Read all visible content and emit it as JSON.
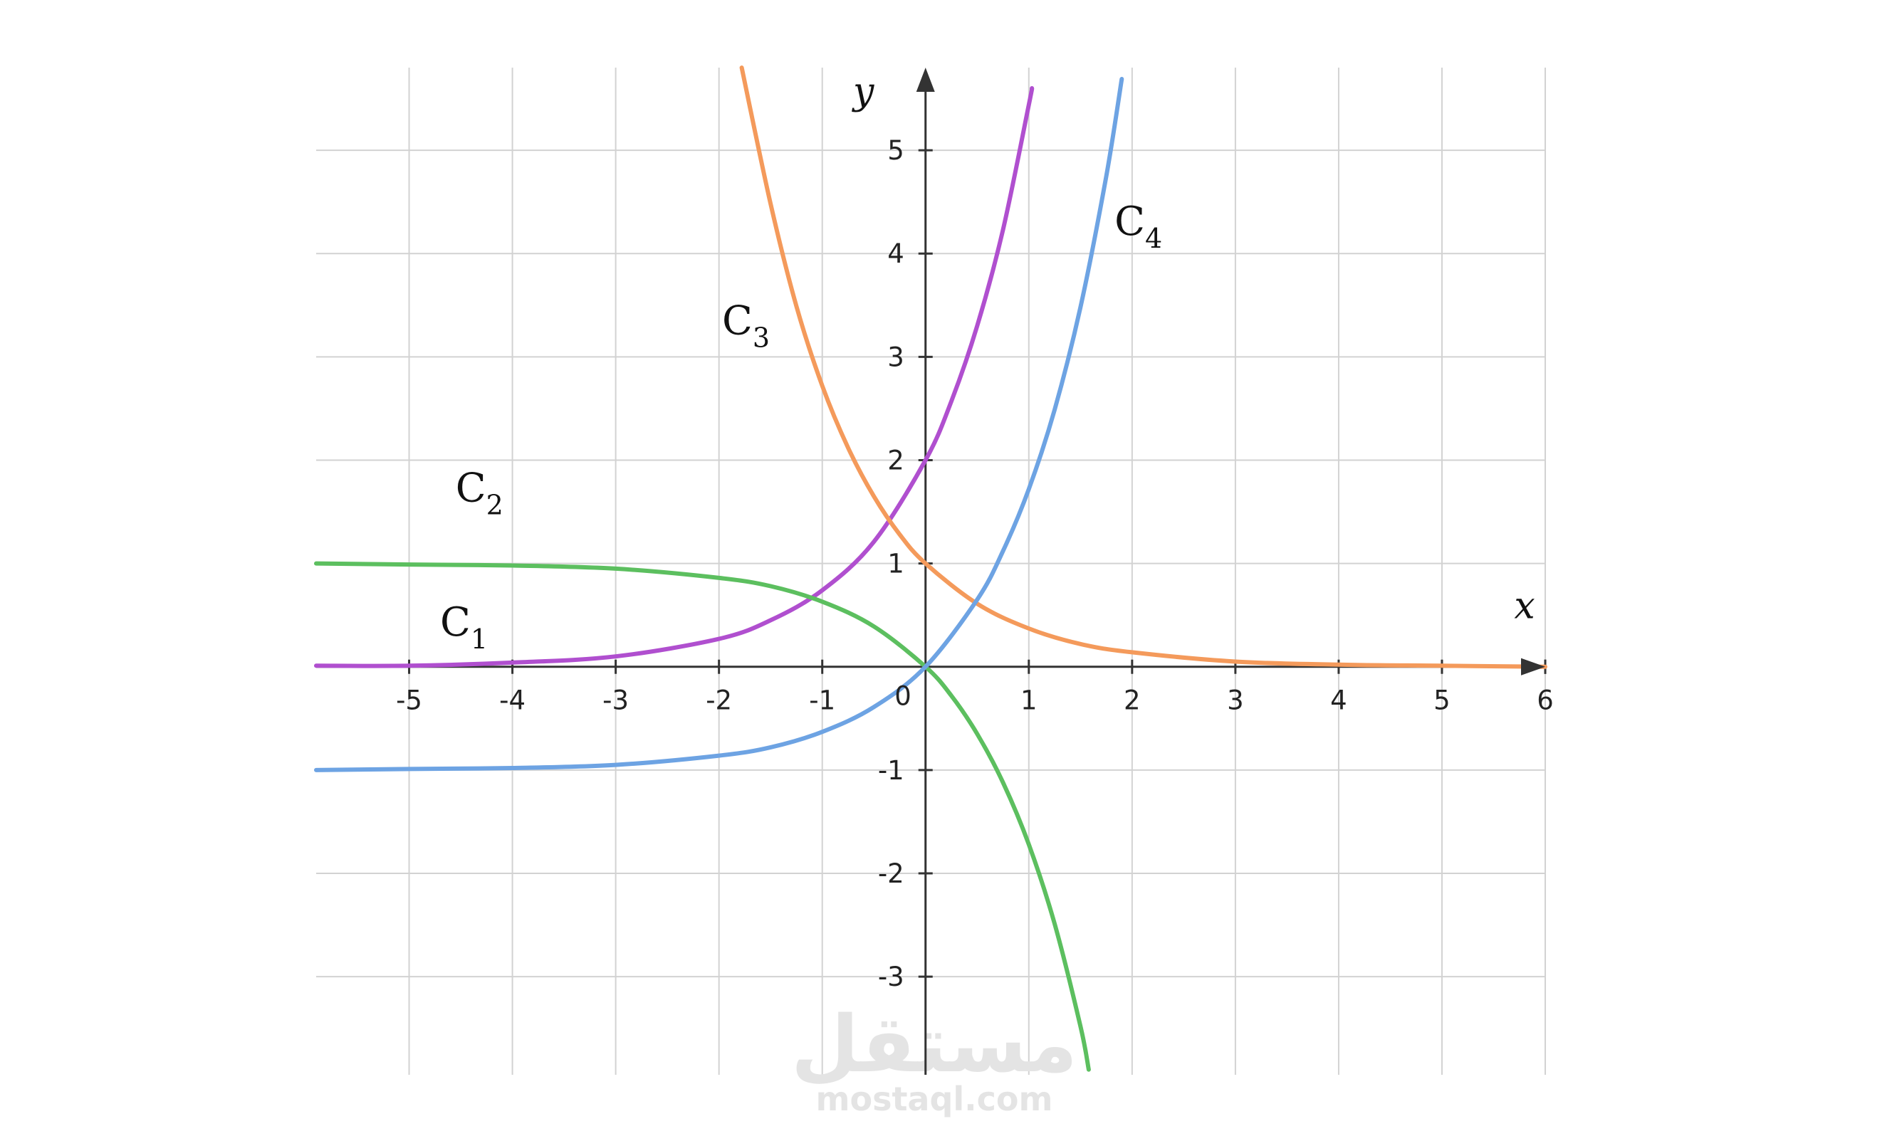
{
  "chart_data": {
    "type": "line",
    "xlim": [
      -5.9,
      6
    ],
    "ylim": [
      -3.95,
      5.8
    ],
    "x_ticks": [
      "-5",
      "-4",
      "-3",
      "-2",
      "-1",
      "1",
      "2",
      "3",
      "4",
      "5",
      "6"
    ],
    "y_ticks": [
      "-3",
      "-2",
      "-1",
      "1",
      "2",
      "3",
      "4",
      "5"
    ],
    "origin_label": "0",
    "xlabel": "x",
    "ylabel": "y",
    "grid": true,
    "series": [
      {
        "name": "C1",
        "color": "#b04fcf",
        "x": [
          -5.9,
          -5,
          -4,
          -3,
          -2,
          -1.5,
          -1,
          -0.5,
          0,
          0.25,
          0.5,
          0.75,
          1,
          1.03
        ],
        "y": [
          0.01,
          0.01,
          0.04,
          0.1,
          0.27,
          0.45,
          0.74,
          1.21,
          2.0,
          2.57,
          3.3,
          4.23,
          5.44,
          5.6
        ]
      },
      {
        "name": "C2",
        "color": "#5cbf5f",
        "x": [
          -5.9,
          -5,
          -4,
          -3,
          -2,
          -1.5,
          -1,
          -0.5,
          0,
          0.25,
          0.5,
          0.75,
          1,
          1.25,
          1.5,
          1.58
        ],
        "y": [
          1.0,
          0.99,
          0.98,
          0.95,
          0.86,
          0.78,
          0.63,
          0.39,
          0,
          -0.28,
          -0.65,
          -1.12,
          -1.72,
          -2.49,
          -3.48,
          -3.9
        ]
      },
      {
        "name": "C3",
        "color": "#f49a5b",
        "x": [
          -1.78,
          -1.5,
          -1.25,
          -1,
          -0.75,
          -0.5,
          -0.25,
          0,
          0.5,
          1,
          1.5,
          2,
          3,
          4,
          5,
          6
        ],
        "y": [
          5.8,
          4.48,
          3.49,
          2.72,
          2.12,
          1.65,
          1.28,
          1.0,
          0.61,
          0.37,
          0.22,
          0.14,
          0.05,
          0.02,
          0.01,
          0
        ]
      },
      {
        "name": "C4",
        "color": "#6da3e3",
        "x": [
          -5.9,
          -5,
          -4,
          -3,
          -2,
          -1.5,
          -1,
          -0.5,
          0,
          0.5,
          0.75,
          1,
          1.25,
          1.5,
          1.75,
          1.9
        ],
        "y": [
          -1.0,
          -0.99,
          -0.98,
          -0.95,
          -0.86,
          -0.78,
          -0.63,
          -0.39,
          0,
          0.65,
          1.12,
          1.72,
          2.49,
          3.48,
          4.75,
          5.69
        ]
      }
    ],
    "curve_labels": [
      {
        "base": "C",
        "sub": "1",
        "x": -4.7,
        "y": 0.3
      },
      {
        "base": "C",
        "sub": "2",
        "x": -4.55,
        "y": 1.6
      },
      {
        "base": "C",
        "sub": "3",
        "x": -1.97,
        "y": 3.22
      },
      {
        "base": "C",
        "sub": "4",
        "x": 1.83,
        "y": 4.18
      }
    ]
  },
  "watermark": {
    "arabic": "مستقل",
    "latin": "mostaql.com"
  }
}
